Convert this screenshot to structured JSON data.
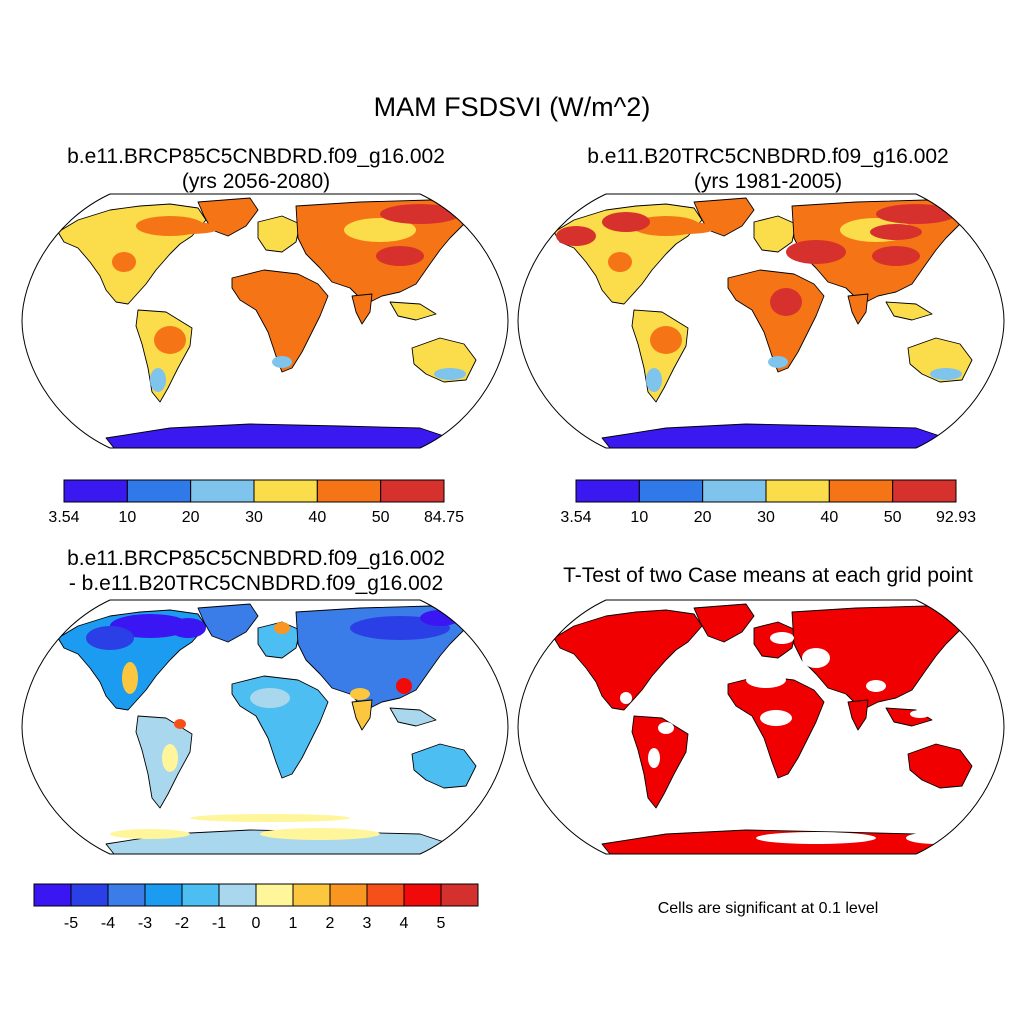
{
  "figure": {
    "title": "MAM FSDSVI (W/m^2)"
  },
  "panels": [
    {
      "id": "case",
      "title_line1": "b.e11.BRCP85C5CNBDRD.f09_g16.002",
      "title_line2": "(yrs 2056-2080)",
      "colorbar": {
        "labels": [
          "3.54",
          "10",
          "20",
          "30",
          "40",
          "50",
          "84.75"
        ],
        "colors": [
          "#3a18f0",
          "#2f7ae8",
          "#7fc4ec",
          "#fbdc4a",
          "#f57416",
          "#d7312e"
        ]
      }
    },
    {
      "id": "control",
      "title_line1": "b.e11.B20TRC5CNBDRD.f09_g16.002",
      "title_line2": "(yrs 1981-2005)",
      "colorbar": {
        "labels": [
          "3.54",
          "10",
          "20",
          "30",
          "40",
          "50",
          "92.93"
        ],
        "colors": [
          "#3a18f0",
          "#2f7ae8",
          "#7fc4ec",
          "#fbdc4a",
          "#f57416",
          "#d7312e"
        ]
      }
    },
    {
      "id": "difference",
      "title_line1": "b.e11.BRCP85C5CNBDRD.f09_g16.002",
      "title_line2": "- b.e11.B20TRC5CNBDRD.f09_g16.002",
      "colorbar": {
        "labels": [
          "-5",
          "-4",
          "-3",
          "-2",
          "-1",
          "0",
          "1",
          "2",
          "3",
          "4",
          "5"
        ],
        "colors": [
          "#3a16f2",
          "#2b3fe6",
          "#3a7ce8",
          "#1c9cf0",
          "#4cbef2",
          "#a9d8ee",
          "#fff59a",
          "#fcc63e",
          "#f99622",
          "#f6501a",
          "#f00a0a",
          "#d4302e"
        ]
      }
    },
    {
      "id": "ttest",
      "title_line1": "T-Test of two Case means at each grid point",
      "footnote": "Cells are significant at 0.1 level",
      "significant_color": "#f00000"
    }
  ]
}
